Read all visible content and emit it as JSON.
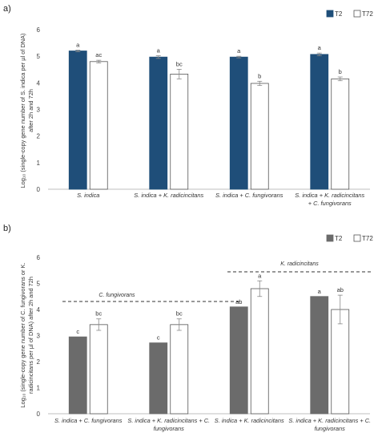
{
  "panels": [
    {
      "label": "a)",
      "ylabel_lines": [
        "Log₁₀ (single-copy gene number of S. indica per µl of DNA)",
        "after 2h and 72h"
      ]
    },
    {
      "label": "b)",
      "ylabel_lines": [
        "Log₁₀ (single-copy  gene number of C. fungivorans or K.",
        "radicincitans per µl of DNA) after 2h and 72h"
      ],
      "annotations": [
        "C. fungivorans",
        "K. radicincitans"
      ]
    }
  ],
  "colors": {
    "panel_a_dark": "#1f4e79",
    "panel_b_dark": "#6b6b6b",
    "light": "#ffffff",
    "edge": "#555555"
  },
  "chart_data": [
    {
      "type": "bar",
      "title": "",
      "xlabel": "",
      "ylabel": "Log₁₀ (single-copy gene number of S. indica per µl of DNA) after 2h and 72h",
      "ylim": [
        0,
        6
      ],
      "yticks": [
        0,
        1,
        2,
        3,
        4,
        5,
        6
      ],
      "legend_position": "top-right",
      "categories": [
        [
          "S. indica"
        ],
        [
          "S. indica + K. radicincitans"
        ],
        [
          "S. indica + C. fungivorans"
        ],
        [
          "S. indica + K. radicincitans",
          "+ C. fungivorans"
        ]
      ],
      "series": [
        {
          "name": "T2",
          "values": [
            5.2,
            4.97,
            4.97,
            5.07
          ],
          "errors": [
            0.03,
            0.05,
            0.03,
            0.05
          ],
          "labels": [
            "a",
            "a",
            "a",
            "a"
          ]
        },
        {
          "name": "T72",
          "values": [
            4.8,
            4.33,
            3.98,
            4.15
          ],
          "errors": [
            0.05,
            0.18,
            0.08,
            0.07
          ],
          "labels": [
            "ac",
            "bc",
            "b",
            "b"
          ]
        }
      ]
    },
    {
      "type": "bar",
      "title": "",
      "xlabel": "",
      "ylabel": "Log₁₀ (single-copy  gene number of C. fungivorans or K. radicincitans per µl of DNA) after 2h and 72h",
      "ylim": [
        0,
        6
      ],
      "yticks": [
        0,
        1,
        2,
        3,
        4,
        5,
        6
      ],
      "legend_position": "top-right",
      "categories": [
        [
          "S. indica + C. fungivorans"
        ],
        [
          "S. indica + K. radicincitans + C.",
          "fungivorans"
        ],
        [
          "S. indica + K. radicincitans"
        ],
        [
          "S. indica + K. radicincitans + C.",
          "fungivorans"
        ]
      ],
      "series": [
        {
          "name": "T2",
          "values": [
            2.95,
            2.72,
            4.1,
            4.5
          ],
          "errors": [
            0,
            0,
            0,
            0
          ],
          "labels": [
            "c",
            "c",
            "ab",
            "a"
          ]
        },
        {
          "name": "T72",
          "values": [
            3.42,
            3.42,
            4.8,
            4.0
          ],
          "errors": [
            0.22,
            0.22,
            0.3,
            0.55
          ],
          "labels": [
            "bc",
            "bc",
            "a",
            "ab"
          ]
        }
      ]
    }
  ]
}
